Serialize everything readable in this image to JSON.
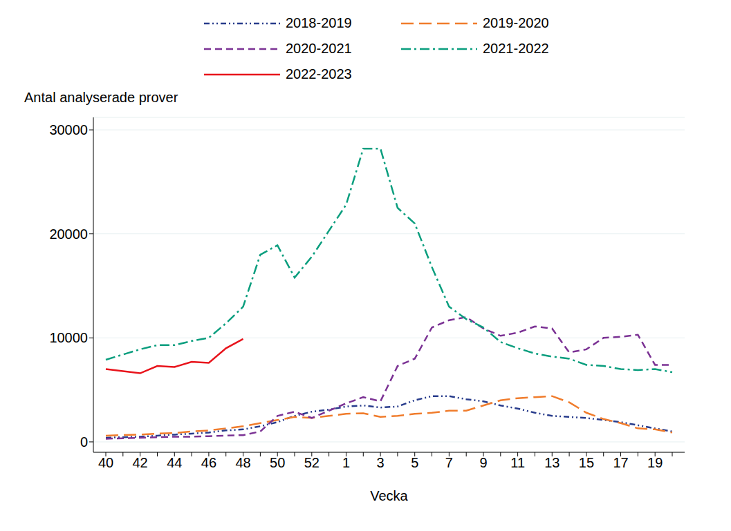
{
  "chart_data": {
    "type": "line",
    "y_label": "Antal analyserade prover",
    "x_label": "Vecka",
    "categories": [
      40,
      null,
      42,
      null,
      44,
      null,
      46,
      null,
      48,
      null,
      50,
      null,
      52,
      null,
      1,
      null,
      3,
      null,
      5,
      null,
      7,
      null,
      9,
      null,
      11,
      null,
      13,
      null,
      15,
      null,
      17,
      null,
      19,
      null
    ],
    "series": [
      {
        "name": "2018-2019",
        "color": "#283c8c",
        "line_style": "dashdotdot",
        "values": [
          400,
          450,
          500,
          600,
          700,
          800,
          900,
          1100,
          1200,
          1500,
          1900,
          2500,
          2900,
          3100,
          3400,
          3500,
          3300,
          3400,
          4000,
          4400,
          4400,
          4100,
          3900,
          3500,
          3200,
          2800,
          2500,
          2400,
          2300,
          2100,
          1900,
          1600,
          1300,
          1000
        ]
      },
      {
        "name": "2019-2020",
        "color": "#f07c2c",
        "line_style": "longdash",
        "values": [
          600,
          650,
          700,
          800,
          850,
          1000,
          1100,
          1300,
          1500,
          1800,
          2100,
          2400,
          2300,
          2500,
          2700,
          2750,
          2400,
          2500,
          2700,
          2800,
          3000,
          3000,
          3500,
          4000,
          4200,
          4300,
          4400,
          3800,
          2800,
          2200,
          1800,
          1300,
          1200,
          900
        ]
      },
      {
        "name": "2020-2021",
        "color": "#7b3294",
        "line_style": "dashed",
        "values": [
          300,
          350,
          400,
          450,
          500,
          500,
          550,
          600,
          650,
          1000,
          2500,
          2900,
          2300,
          3000,
          3700,
          4300,
          3900,
          7300,
          8000,
          11000,
          11700,
          12000,
          10900,
          10200,
          10500,
          11100,
          10900,
          8600,
          8900,
          10000,
          10100,
          10300,
          7400,
          7400
        ]
      },
      {
        "name": "2021-2022",
        "color": "#0a9e7e",
        "line_style": "dashdot",
        "values": [
          7900,
          8400,
          8900,
          9300,
          9300,
          9700,
          10000,
          11400,
          13000,
          18000,
          18900,
          15800,
          17800,
          20300,
          22800,
          28200,
          28200,
          22500,
          21000,
          16800,
          13000,
          11800,
          11000,
          9600,
          9000,
          8500,
          8200,
          8000,
          7400,
          7300,
          7000,
          6900,
          7000,
          6700
        ]
      },
      {
        "name": "2022-2023",
        "color": "#e8131b",
        "line_style": "solid",
        "values": [
          7000,
          6800,
          6600,
          7300,
          7200,
          7700,
          7600,
          9000,
          9900,
          null,
          null,
          null,
          null,
          null,
          null,
          null,
          null,
          null,
          null,
          null,
          null,
          null,
          null,
          null,
          null,
          null,
          null,
          null,
          null,
          null,
          null,
          null,
          null,
          null
        ]
      }
    ],
    "ylim": [
      -1000,
      31200
    ],
    "yticks": [
      0,
      10000,
      20000,
      30000
    ],
    "grid": true,
    "legend": "top"
  }
}
